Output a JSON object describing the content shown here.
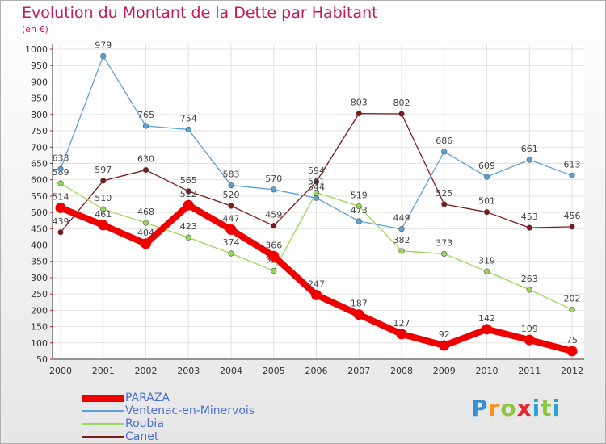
{
  "title": "Evolution du Montant de la Dette par Habitant",
  "unit": "(en €)",
  "chart_data": {
    "type": "line",
    "title": "Evolution du Montant de la Dette par Habitant",
    "ylabel": "(en €)",
    "ylim": [
      50,
      1000
    ],
    "yticks": [
      50,
      100,
      150,
      200,
      250,
      300,
      350,
      400,
      450,
      500,
      550,
      600,
      650,
      700,
      750,
      800,
      850,
      900,
      950,
      1000
    ],
    "x": [
      "2000",
      "2001",
      "2002",
      "2003",
      "2004",
      "2005",
      "2006",
      "2007",
      "2008",
      "2009",
      "2010",
      "2011",
      "2012"
    ],
    "grid": true,
    "legend": "bottom-left",
    "series": [
      {
        "name": "PARAZA",
        "color": "#ee0000",
        "values": [
          514,
          461,
          404,
          522,
          447,
          366,
          247,
          187,
          127,
          92,
          142,
          109,
          75
        ]
      },
      {
        "name": "Ventenac-en-Minervois",
        "color": "#5ba0d6",
        "values": [
          633,
          979,
          765,
          754,
          583,
          570,
          544,
          473,
          449,
          686,
          609,
          661,
          613
        ]
      },
      {
        "name": "Roubia",
        "color": "#9ad65a",
        "values": [
          589,
          510,
          468,
          423,
          374,
          321,
          561,
          519,
          382,
          373,
          319,
          263,
          202
        ]
      },
      {
        "name": "Canet",
        "color": "#7a1a1a",
        "values": [
          439,
          597,
          630,
          565,
          520,
          459,
          594,
          803,
          802,
          525,
          501,
          453,
          456
        ]
      }
    ]
  },
  "logo": {
    "p": "P",
    "r": "r",
    "o": "o",
    "x": "x",
    "i": "i",
    "t": "t",
    "i2": "i"
  }
}
